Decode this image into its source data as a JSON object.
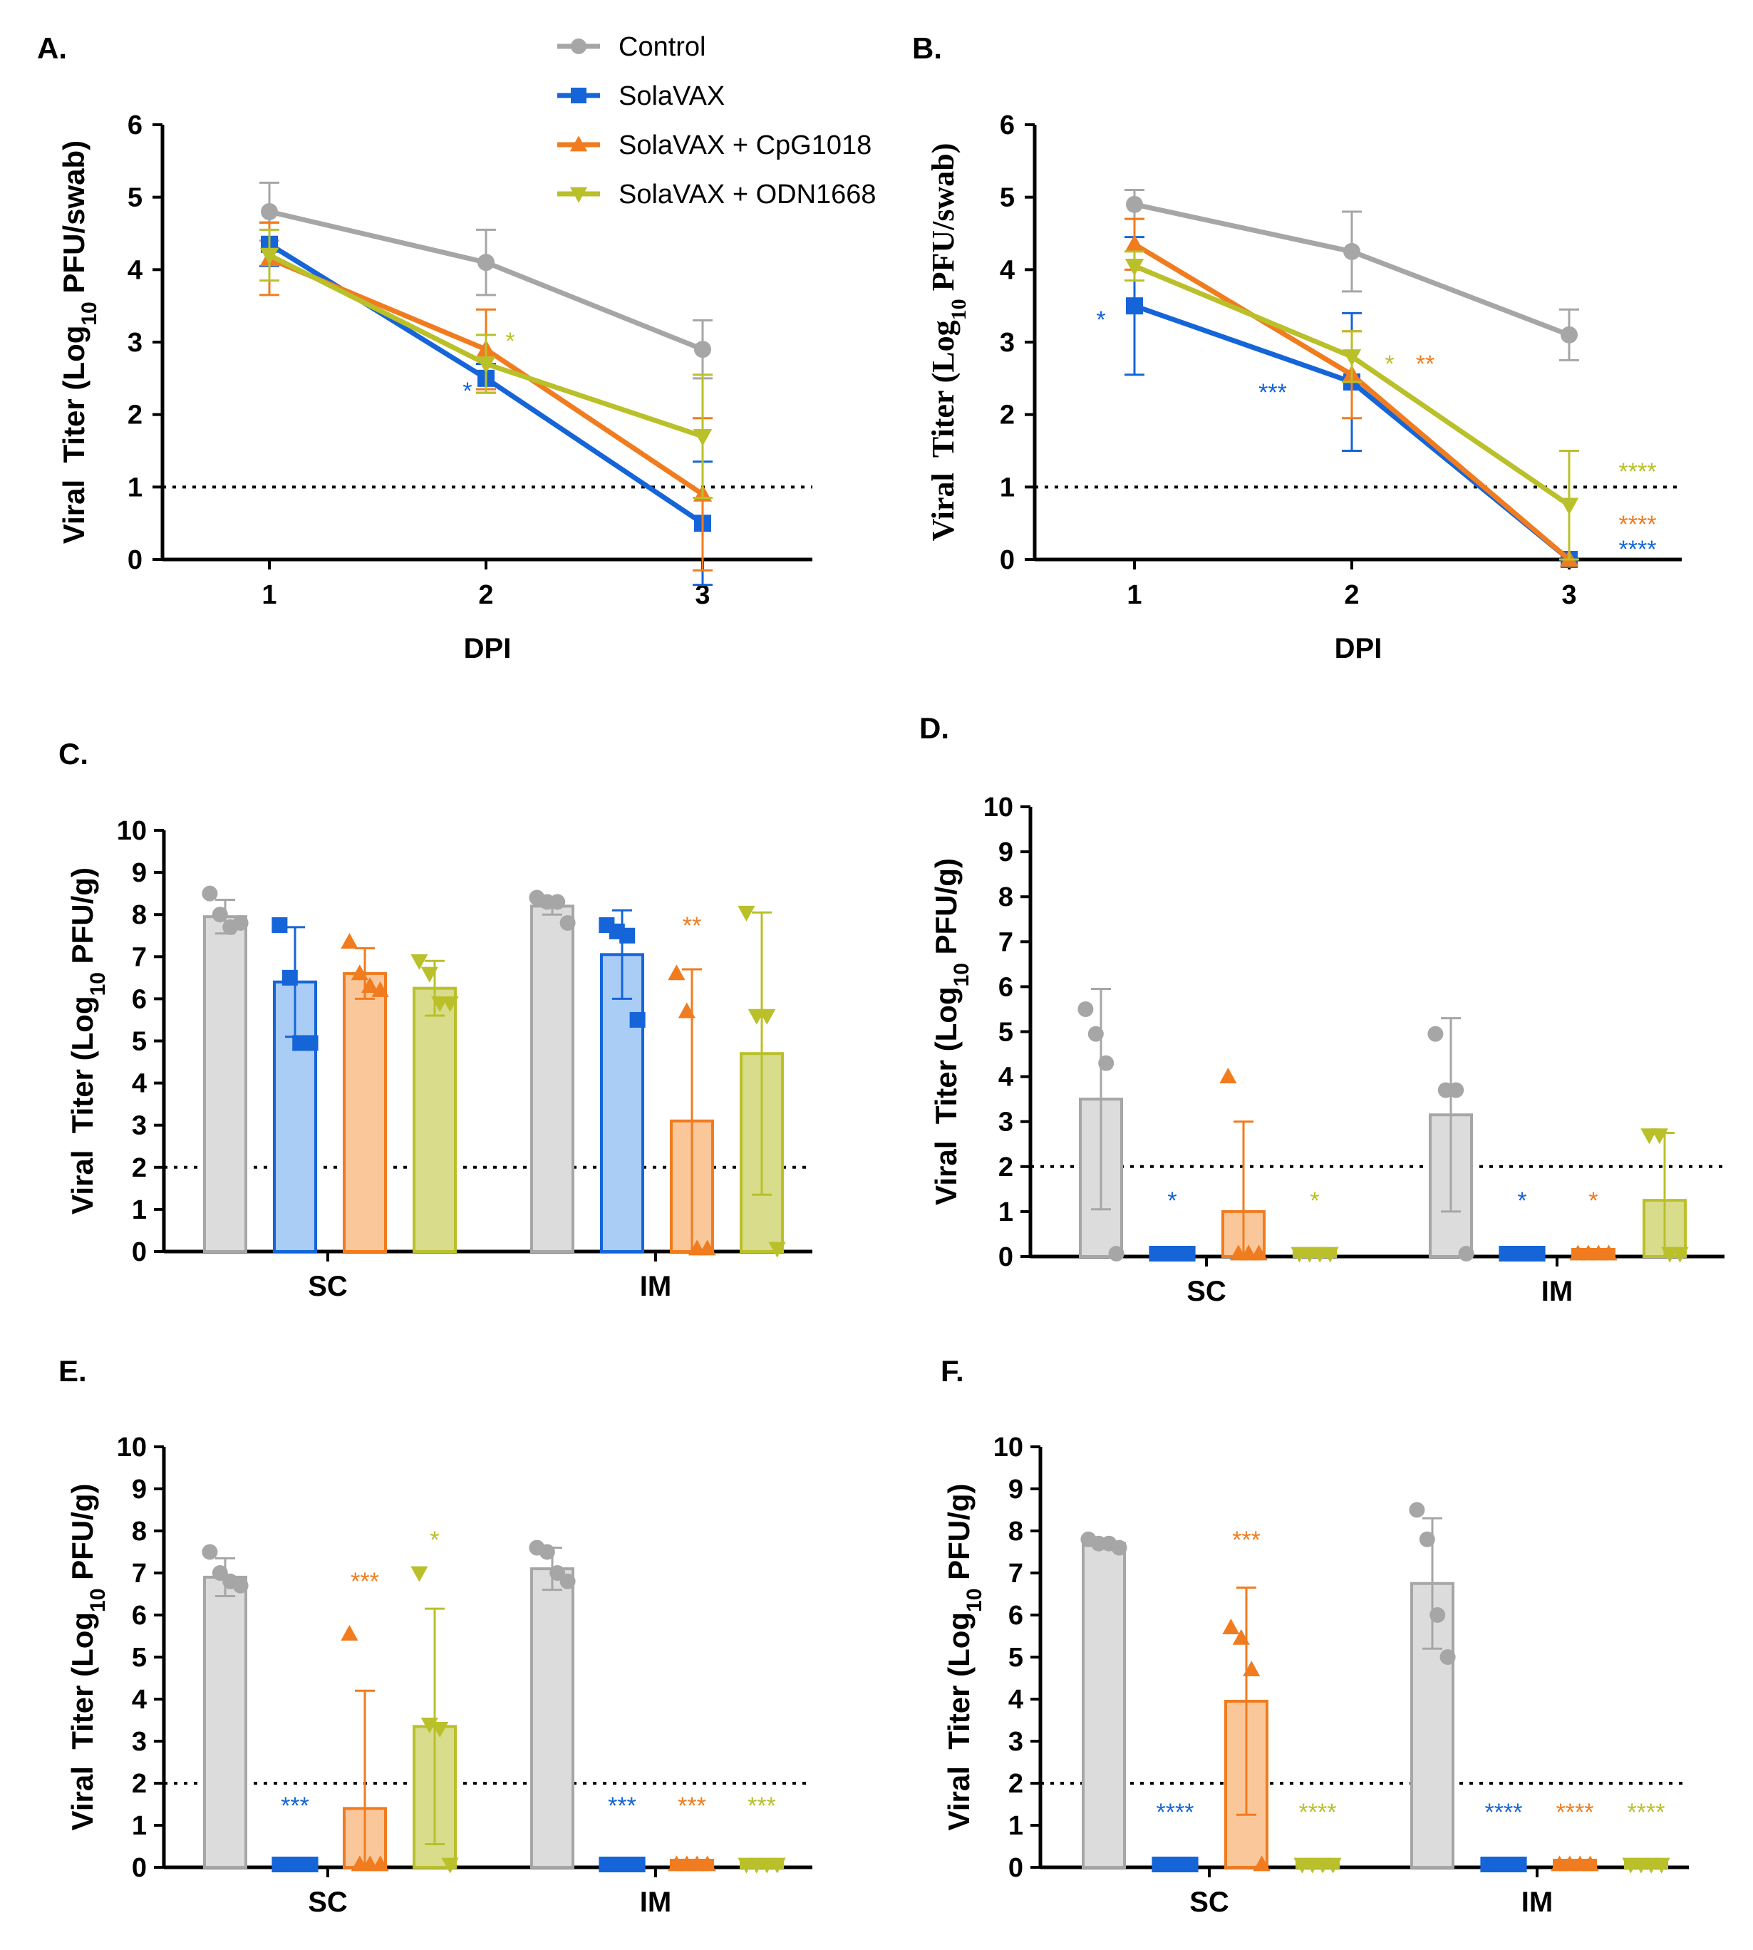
{
  "legend": [
    {
      "name": "Control",
      "color": "#a6a6a6",
      "marker": "circle"
    },
    {
      "name": "SolaVAX",
      "color": "#1565d8",
      "marker": "square"
    },
    {
      "name": "SolaVAX + CpG1018",
      "color": "#f07c1f",
      "marker": "triangle-up"
    },
    {
      "name": "SolaVAX + ODN1668",
      "color": "#b9c02a",
      "marker": "triangle-down"
    }
  ],
  "colors": {
    "control": "#a6a6a6",
    "control_fill": "#dcdcdc",
    "solavax": "#1565d8",
    "solavax_fill": "#a9cdf5",
    "cpg": "#f07c1f",
    "cpg_fill": "#fac79a",
    "odn": "#b9c02a",
    "odn_fill": "#d9dc8a"
  },
  "chart_data": [
    {
      "panel": "A.",
      "type": "line",
      "xlabel": "DPI",
      "ylabel": "Viral Titer (Log10 PFU/swab)",
      "x": [
        1,
        2,
        3
      ],
      "xticks": [
        "1",
        "2",
        "3"
      ],
      "ylim": [
        0,
        6
      ],
      "yticks": [
        "0",
        "1",
        "2",
        "3",
        "4",
        "5",
        "6"
      ],
      "limit_of_detection": 1,
      "series": [
        {
          "name": "Control",
          "values": [
            4.8,
            4.1,
            2.9
          ],
          "err": [
            0.4,
            0.45,
            0.4
          ]
        },
        {
          "name": "SolaVAX",
          "values": [
            4.35,
            2.5,
            0.5
          ],
          "err": [
            0.3,
            0.2,
            0.85
          ]
        },
        {
          "name": "SolaVAX + CpG1018",
          "values": [
            4.15,
            2.9,
            0.9
          ],
          "err": [
            0.5,
            0.55,
            1.05
          ]
        },
        {
          "name": "SolaVAX + ODN1668",
          "values": [
            4.2,
            2.7,
            1.7
          ],
          "err": [
            0.35,
            0.4,
            0.85
          ]
        }
      ],
      "annotations": [
        {
          "series": "SolaVAX + ODN1668",
          "x": 2,
          "text": "*"
        },
        {
          "series": "SolaVAX",
          "x": 2,
          "text": "*"
        }
      ]
    },
    {
      "panel": "B.",
      "type": "line",
      "xlabel": "DPI",
      "ylabel": "Viral Titer (Log10 PFU/swab)",
      "x": [
        1,
        2,
        3
      ],
      "xticks": [
        "1",
        "2",
        "3"
      ],
      "ylim": [
        0,
        6
      ],
      "yticks": [
        "0",
        "1",
        "2",
        "3",
        "4",
        "5",
        "6"
      ],
      "limit_of_detection": 1,
      "series": [
        {
          "name": "Control",
          "values": [
            4.9,
            4.25,
            3.1
          ],
          "err": [
            0.2,
            0.55,
            0.35
          ]
        },
        {
          "name": "SolaVAX",
          "values": [
            3.5,
            2.45,
            0.0
          ],
          "err": [
            0.95,
            0.95,
            0.0
          ]
        },
        {
          "name": "SolaVAX + CpG1018",
          "values": [
            4.35,
            2.55,
            0.0
          ],
          "err": [
            0.35,
            0.6,
            0.0
          ]
        },
        {
          "name": "SolaVAX + ODN1668",
          "values": [
            4.05,
            2.8,
            0.75
          ],
          "err": [
            0.2,
            0.35,
            0.75
          ]
        }
      ],
      "annotations": [
        {
          "series": "SolaVAX",
          "x": 1,
          "text": "*"
        },
        {
          "series": "SolaVAX",
          "x": 2,
          "text": "***"
        },
        {
          "series": "SolaVAX + ODN1668",
          "x": 2,
          "text": "*"
        },
        {
          "series": "SolaVAX + CpG1018",
          "x": 2,
          "text": "**"
        },
        {
          "series": "SolaVAX + ODN1668",
          "x": 3,
          "text": "****"
        },
        {
          "series": "SolaVAX + CpG1018",
          "x": 3,
          "text": "****"
        },
        {
          "series": "SolaVAX",
          "x": 3,
          "text": "****"
        }
      ]
    },
    {
      "panel": "C.",
      "type": "bar",
      "ylabel": "Viral Titer (Log10 PFU/g)",
      "categories": [
        "SC",
        "IM"
      ],
      "ylim": [
        0,
        10
      ],
      "yticks": [
        "0",
        "1",
        "2",
        "3",
        "4",
        "5",
        "6",
        "7",
        "8",
        "9",
        "10"
      ],
      "limit_of_detection": 2,
      "series": [
        {
          "name": "Control",
          "values": [
            7.95,
            8.2
          ],
          "err": [
            0.4,
            0.2
          ],
          "points": [
            [
              8.5,
              8.0,
              7.7,
              7.8
            ],
            [
              8.4,
              8.3,
              8.3,
              7.8
            ]
          ]
        },
        {
          "name": "SolaVAX",
          "values": [
            6.4,
            7.05
          ],
          "err": [
            1.3,
            1.05
          ],
          "points": [
            [
              7.75,
              6.5,
              4.95,
              4.95
            ],
            [
              7.75,
              7.6,
              7.5,
              5.5
            ]
          ]
        },
        {
          "name": "SolaVAX + CpG1018",
          "values": [
            6.6,
            3.1
          ],
          "err": [
            0.6,
            3.6
          ],
          "points": [
            [
              7.35,
              6.6,
              6.3,
              6.2
            ],
            [
              6.6,
              5.7,
              0,
              0
            ]
          ]
        },
        {
          "name": "SolaVAX + ODN1668",
          "values": [
            6.25,
            4.7
          ],
          "err": [
            0.65,
            3.35
          ],
          "points": [
            [
              6.9,
              6.6,
              5.9,
              5.9
            ],
            [
              8.05,
              5.6,
              5.6,
              0
            ]
          ]
        }
      ],
      "annotations": [
        {
          "series": "SolaVAX + CpG1018",
          "category": "IM",
          "text": "**"
        }
      ]
    },
    {
      "panel": "D.",
      "type": "bar",
      "ylabel": "Viral Titer (Log10 PFU/g)",
      "categories": [
        "SC",
        "IM"
      ],
      "ylim": [
        0,
        10
      ],
      "yticks": [
        "0",
        "1",
        "2",
        "3",
        "4",
        "5",
        "6",
        "7",
        "8",
        "9",
        "10"
      ],
      "limit_of_detection": 2,
      "series": [
        {
          "name": "Control",
          "values": [
            3.5,
            3.15
          ],
          "err": [
            2.45,
            2.15
          ],
          "points": [
            [
              5.5,
              4.95,
              4.3,
              0
            ],
            [
              4.95,
              3.7,
              3.7,
              0
            ]
          ]
        },
        {
          "name": "SolaVAX",
          "values": [
            0.05,
            0.05
          ],
          "err": [
            0,
            0
          ],
          "points": [
            [
              0,
              0,
              0,
              0
            ],
            [
              0,
              0,
              0,
              0
            ]
          ]
        },
        {
          "name": "SolaVAX + CpG1018",
          "values": [
            1.0,
            0.05
          ],
          "err": [
            2.0,
            0
          ],
          "points": [
            [
              4.0,
              0,
              0,
              0
            ],
            [
              0,
              0,
              0,
              0
            ]
          ]
        },
        {
          "name": "SolaVAX + ODN1668",
          "values": [
            0.05,
            1.25
          ],
          "err": [
            0,
            1.5
          ],
          "points": [
            [
              0,
              0,
              0,
              0
            ],
            [
              2.7,
              2.7,
              0,
              0
            ]
          ]
        }
      ],
      "annotations": [
        {
          "series": "SolaVAX",
          "category": "SC",
          "text": "*"
        },
        {
          "series": "SolaVAX + ODN1668",
          "category": "SC",
          "text": "*"
        },
        {
          "series": "SolaVAX",
          "category": "IM",
          "text": "*"
        },
        {
          "series": "SolaVAX + CpG1018",
          "category": "IM",
          "text": "*"
        }
      ]
    },
    {
      "panel": "E.",
      "type": "bar",
      "ylabel": "Viral Titer (Log10 PFU/g)",
      "categories": [
        "SC",
        "IM"
      ],
      "ylim": [
        0,
        10
      ],
      "yticks": [
        "0",
        "1",
        "2",
        "3",
        "4",
        "5",
        "6",
        "7",
        "8",
        "9",
        "10"
      ],
      "limit_of_detection": 2,
      "series": [
        {
          "name": "Control",
          "values": [
            6.9,
            7.1
          ],
          "err": [
            0.45,
            0.5
          ],
          "points": [
            [
              7.5,
              7.0,
              6.8,
              6.7
            ],
            [
              7.6,
              7.5,
              7.0,
              6.8
            ]
          ]
        },
        {
          "name": "SolaVAX",
          "values": [
            0.05,
            0.05
          ],
          "err": [
            0,
            0
          ],
          "points": [
            [
              0,
              0,
              0,
              0
            ],
            [
              0,
              0,
              0,
              0
            ]
          ]
        },
        {
          "name": "SolaVAX + CpG1018",
          "values": [
            1.4,
            0.05
          ],
          "err": [
            2.8,
            0
          ],
          "points": [
            [
              5.55,
              0,
              0,
              0
            ],
            [
              0,
              0,
              0,
              0
            ]
          ]
        },
        {
          "name": "SolaVAX + ODN1668",
          "values": [
            3.35,
            0.05
          ],
          "err": [
            2.8,
            0
          ],
          "points": [
            [
              7.0,
              3.4,
              3.3,
              0
            ],
            [
              0,
              0,
              0,
              0
            ]
          ]
        }
      ],
      "annotations": [
        {
          "series": "SolaVAX + ODN1668",
          "category": "SC",
          "text": "*"
        },
        {
          "series": "SolaVAX + CpG1018",
          "category": "SC",
          "text": "***"
        },
        {
          "series": "SolaVAX",
          "category": "SC",
          "text": "***"
        },
        {
          "series": "SolaVAX",
          "category": "IM",
          "text": "***"
        },
        {
          "series": "SolaVAX + CpG1018",
          "category": "IM",
          "text": "***"
        },
        {
          "series": "SolaVAX + ODN1668",
          "category": "IM",
          "text": "***"
        }
      ]
    },
    {
      "panel": "F.",
      "type": "bar",
      "ylabel": "Viral Titer (Log10 PFU/g)",
      "categories": [
        "SC",
        "IM"
      ],
      "ylim": [
        0,
        10
      ],
      "yticks": [
        "0",
        "1",
        "2",
        "3",
        "4",
        "5",
        "6",
        "7",
        "8",
        "9",
        "10"
      ],
      "limit_of_detection": 2,
      "series": [
        {
          "name": "Control",
          "values": [
            7.7,
            6.75
          ],
          "err": [
            0.1,
            1.55
          ],
          "points": [
            [
              7.8,
              7.7,
              7.7,
              7.6
            ],
            [
              8.5,
              7.8,
              6.0,
              5.0
            ]
          ]
        },
        {
          "name": "SolaVAX",
          "values": [
            0.05,
            0.05
          ],
          "err": [
            0,
            0
          ],
          "points": [
            [
              0,
              0,
              0,
              0
            ],
            [
              0,
              0,
              0,
              0
            ]
          ]
        },
        {
          "name": "SolaVAX + CpG1018",
          "values": [
            3.95,
            0.05
          ],
          "err": [
            2.7,
            0
          ],
          "points": [
            [
              5.7,
              5.45,
              4.7,
              0
            ],
            [
              0,
              0,
              0,
              0
            ]
          ]
        },
        {
          "name": "SolaVAX + ODN1668",
          "values": [
            0.05,
            0.05
          ],
          "err": [
            0,
            0
          ],
          "points": [
            [
              0,
              0,
              0,
              0
            ],
            [
              0,
              0,
              0,
              0
            ]
          ]
        }
      ],
      "annotations": [
        {
          "series": "SolaVAX + CpG1018",
          "category": "SC",
          "text": "***"
        },
        {
          "series": "SolaVAX",
          "category": "SC",
          "text": "****"
        },
        {
          "series": "SolaVAX + ODN1668",
          "category": "SC",
          "text": "****"
        },
        {
          "series": "SolaVAX",
          "category": "IM",
          "text": "****"
        },
        {
          "series": "SolaVAX + CpG1018",
          "category": "IM",
          "text": "****"
        },
        {
          "series": "SolaVAX + ODN1668",
          "category": "IM",
          "text": "****"
        }
      ]
    }
  ]
}
